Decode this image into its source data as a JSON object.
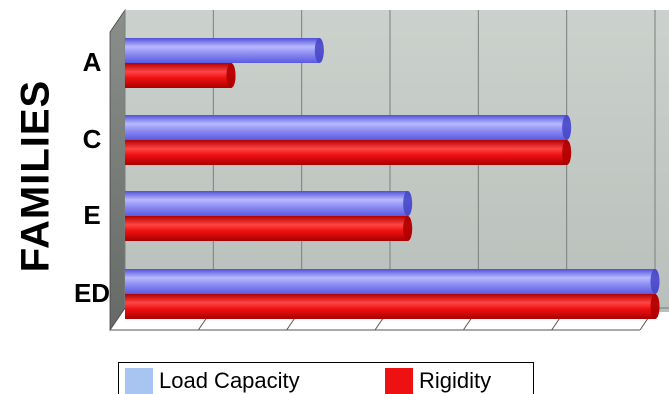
{
  "chart_data": {
    "type": "bar",
    "orientation": "horizontal",
    "style": "3d-cylinder",
    "categories": [
      "A",
      "C",
      "E",
      "ED"
    ],
    "series": [
      {
        "name": "Load Capacity",
        "values": [
          22,
          50,
          32,
          60
        ],
        "color": "#8080f0",
        "legend_color": "#a8c4f0"
      },
      {
        "name": "Rigidity",
        "values": [
          12,
          50,
          32,
          60
        ],
        "color": "#ee1111",
        "legend_color": "#ee1111"
      }
    ],
    "xlim": [
      0,
      60
    ],
    "ylabel": "FAMILIES",
    "grid": true,
    "legend": "bottom"
  }
}
